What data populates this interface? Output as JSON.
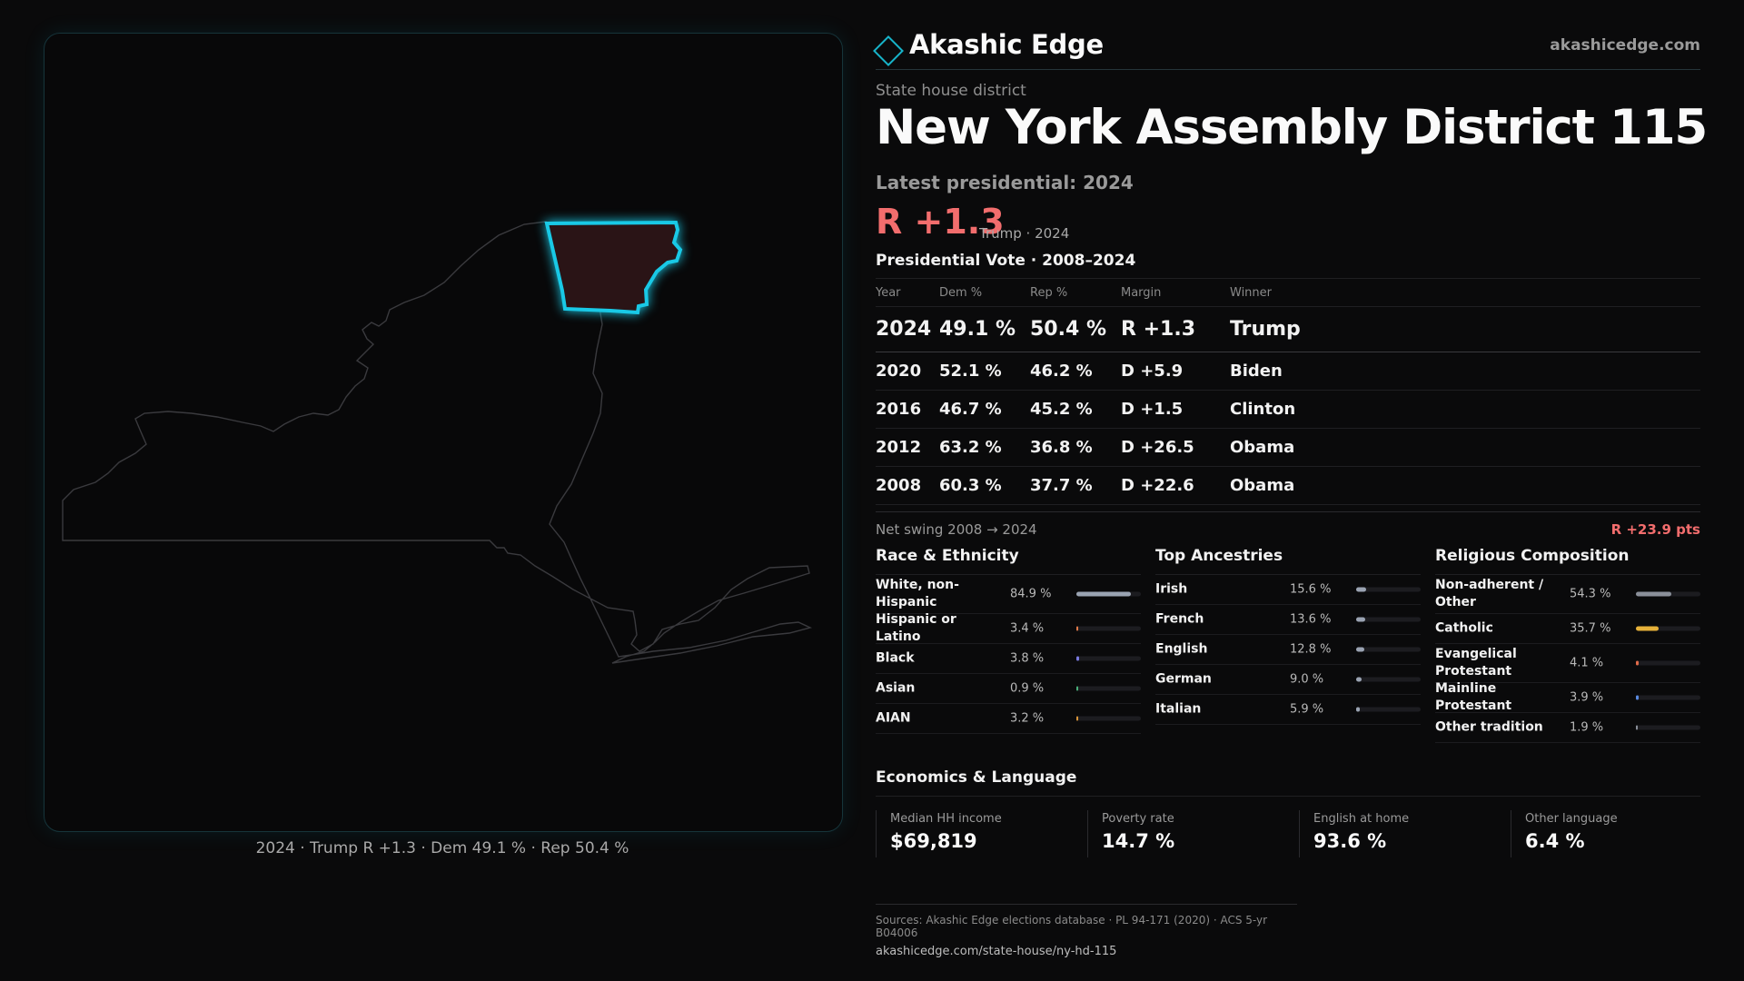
{
  "map": {
    "caption": "2024 · Trump  R +1.3 · Dem 49.1 % · Rep 50.4 %",
    "state_outline_color": "#3a3a3e",
    "district_outline_color": "#19c9e6",
    "district_fill": "#2a1416"
  },
  "header": {
    "brand_name": "Akashic Edge",
    "brand_url": "akashicedge.com",
    "brand_icon": "diamond-icon",
    "accent_color": "#17b3c9"
  },
  "district": {
    "type": "State house district",
    "title": "New York  Assembly District 115",
    "latest_label": "Latest presidential: 2024",
    "margin": "R +1.3",
    "margin_sub": "Trump · 2024"
  },
  "votes": {
    "title": "Presidential Vote · 2008–2024",
    "columns": [
      "Year",
      "Dem %",
      "Rep %",
      "Margin",
      "Winner"
    ],
    "rows": [
      {
        "year": "2024",
        "dem": "49.1 %",
        "rep": "50.4 %",
        "margin": "R +1.3",
        "party": "rep",
        "winner": "Trump"
      },
      {
        "year": "2020",
        "dem": "52.1 %",
        "rep": "46.2 %",
        "margin": "D +5.9",
        "party": "dem",
        "winner": "Biden"
      },
      {
        "year": "2016",
        "dem": "46.7 %",
        "rep": "45.2 %",
        "margin": "D +1.5",
        "party": "dem",
        "winner": "Clinton"
      },
      {
        "year": "2012",
        "dem": "63.2 %",
        "rep": "36.8 %",
        "margin": "D +26.5",
        "party": "dem",
        "winner": "Obama"
      },
      {
        "year": "2008",
        "dem": "60.3 %",
        "rep": "37.7 %",
        "margin": "D +22.6",
        "party": "dem",
        "winner": "Obama"
      }
    ],
    "dem_color": "#6aa6f5",
    "rep_color": "#f26d6d"
  },
  "swing": {
    "label": "Net swing 2008 → 2024",
    "value": "R +23.9 pts"
  },
  "race": {
    "title": "Race & Ethnicity",
    "items": [
      {
        "label": "White, non-Hispanic",
        "value": "84.9 %",
        "pct": 84.9,
        "color": "#9aa3b2"
      },
      {
        "label": "Hispanic or Latino",
        "value": "3.4 %",
        "pct": 3.4,
        "color": "#e07a4a"
      },
      {
        "label": "Black",
        "value": "3.8 %",
        "pct": 3.8,
        "color": "#7a7ae0"
      },
      {
        "label": "Asian",
        "value": "0.9 %",
        "pct": 0.9,
        "color": "#4ab07a"
      },
      {
        "label": "AIAN",
        "value": "3.2 %",
        "pct": 3.2,
        "color": "#d8953a"
      }
    ]
  },
  "ancestry": {
    "title": "Top Ancestries",
    "items": [
      {
        "label": "Irish",
        "value": "15.6 %",
        "pct": 15.6,
        "color": "#9aa3b2"
      },
      {
        "label": "French",
        "value": "13.6 %",
        "pct": 13.6,
        "color": "#9aa3b2"
      },
      {
        "label": "English",
        "value": "12.8 %",
        "pct": 12.8,
        "color": "#9aa3b2"
      },
      {
        "label": "German",
        "value": "9.0 %",
        "pct": 9.0,
        "color": "#9aa3b2"
      },
      {
        "label": "Italian",
        "value": "5.9 %",
        "pct": 5.9,
        "color": "#9aa3b2"
      }
    ]
  },
  "religion": {
    "title": "Religious Composition",
    "items": [
      {
        "label": "Non-adherent / Other",
        "value": "54.3 %",
        "pct": 54.3,
        "color": "#8a8f99"
      },
      {
        "label": "Catholic",
        "value": "35.7 %",
        "pct": 35.7,
        "color": "#e6b13a"
      },
      {
        "label": "Evangelical Protestant",
        "value": "4.1 %",
        "pct": 4.1,
        "color": "#e06a4a"
      },
      {
        "label": "Mainline Protestant",
        "value": "3.9 %",
        "pct": 3.9,
        "color": "#5a8ae0"
      },
      {
        "label": "Other tradition",
        "value": "1.9 %",
        "pct": 1.9,
        "color": "#8a8f99"
      }
    ]
  },
  "economics": {
    "title": "Economics & Language",
    "items": [
      {
        "label": "Median HH income",
        "value": "$69,819"
      },
      {
        "label": "Poverty rate",
        "value": "14.7 %"
      },
      {
        "label": "English at home",
        "value": "93.6 %"
      },
      {
        "label": "Other language",
        "value": "6.4 %"
      }
    ]
  },
  "sources": {
    "line1": "Sources: Akashic Edge elections database · PL 94-171 (2020) · ACS 5-yr B04006",
    "line2": "akashicedge.com/state-house/ny-hd-115"
  }
}
